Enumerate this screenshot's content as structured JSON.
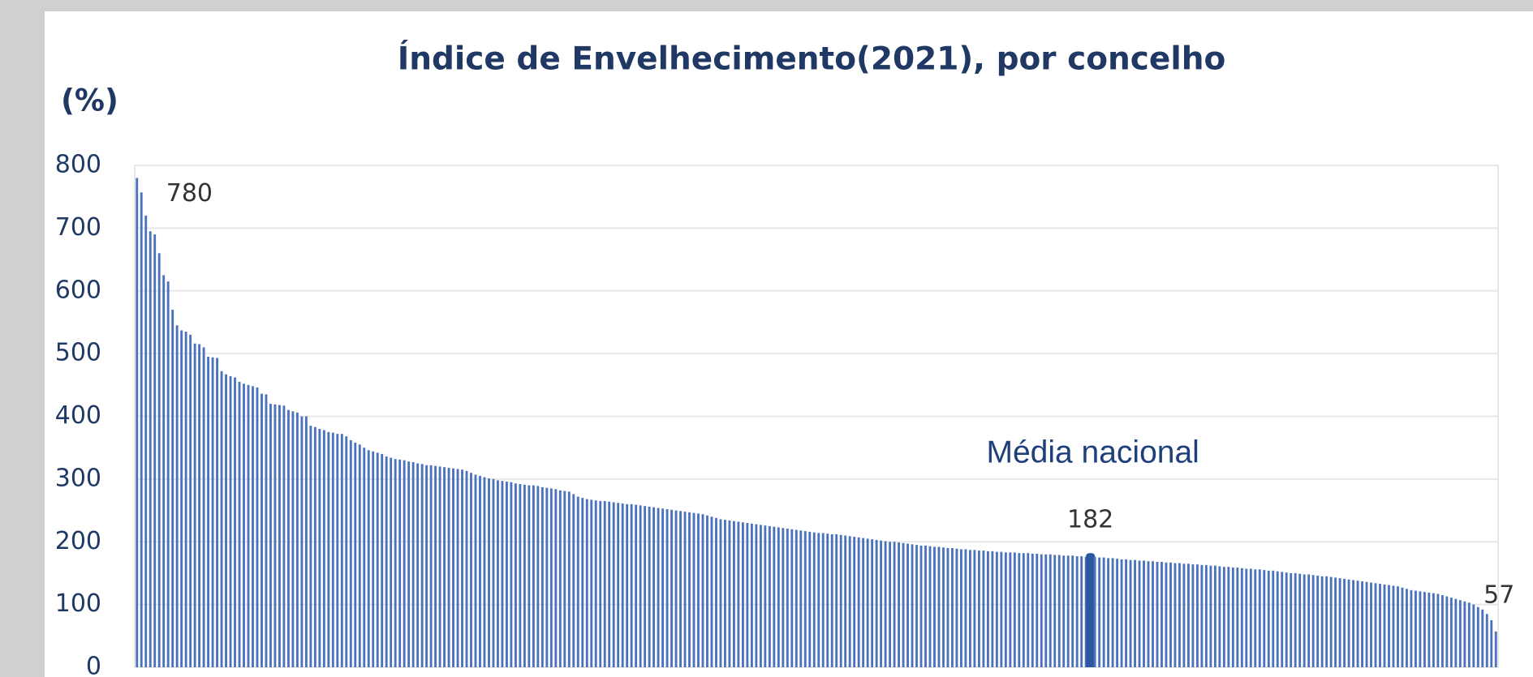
{
  "chart_data": {
    "type": "bar",
    "title": "Índice de Envelhecimento(2021), por concelho",
    "y_label": "(%)",
    "color": "#4a72bd",
    "grid": true,
    "ylim": [
      0,
      800
    ],
    "yticks": [
      0,
      100,
      200,
      300,
      400,
      500,
      600,
      700,
      800
    ],
    "highlight": {
      "index": 214,
      "label": "Média nacional",
      "color": "#2c56a0"
    },
    "labeled_indices": [
      0,
      214,
      305
    ],
    "values": [
      780,
      757,
      720,
      695,
      690,
      660,
      625,
      615,
      570,
      545,
      537,
      535,
      530,
      516,
      515,
      510,
      495,
      494,
      493,
      472,
      467,
      464,
      462,
      455,
      452,
      450,
      448,
      446,
      436,
      435,
      420,
      419,
      418,
      417,
      410,
      408,
      406,
      400,
      400,
      385,
      383,
      380,
      378,
      375,
      374,
      372,
      372,
      368,
      362,
      358,
      355,
      350,
      346,
      344,
      342,
      340,
      336,
      334,
      332,
      331,
      330,
      328,
      327,
      325,
      324,
      322,
      322,
      321,
      320,
      319,
      318,
      317,
      316,
      315,
      313,
      310,
      307,
      305,
      303,
      301,
      300,
      298,
      297,
      296,
      295,
      293,
      292,
      291,
      290,
      290,
      289,
      287,
      286,
      285,
      284,
      282,
      281,
      280,
      276,
      272,
      270,
      268,
      267,
      266,
      265,
      265,
      264,
      263,
      262,
      261,
      260,
      260,
      259,
      258,
      257,
      256,
      255,
      254,
      253,
      252,
      251,
      250,
      249,
      248,
      247,
      246,
      245,
      244,
      242,
      240,
      238,
      236,
      235,
      234,
      233,
      232,
      231,
      230,
      229,
      228,
      227,
      226,
      225,
      224,
      223,
      222,
      221,
      220,
      219,
      218,
      217,
      216,
      215,
      214,
      214,
      213,
      212,
      212,
      211,
      210,
      209,
      208,
      207,
      206,
      205,
      204,
      203,
      202,
      201,
      200,
      200,
      199,
      198,
      197,
      196,
      195,
      194,
      194,
      193,
      192,
      192,
      191,
      190,
      190,
      189,
      188,
      188,
      187,
      187,
      186,
      186,
      185,
      185,
      184,
      184,
      183,
      183,
      183,
      182,
      182,
      182,
      181,
      181,
      180,
      180,
      180,
      179,
      179,
      178,
      178,
      178,
      177,
      177,
      176,
      182,
      176,
      175,
      175,
      174,
      174,
      173,
      172,
      172,
      171,
      171,
      170,
      170,
      169,
      169,
      168,
      168,
      167,
      167,
      166,
      166,
      165,
      165,
      164,
      164,
      163,
      163,
      162,
      162,
      161,
      160,
      160,
      159,
      159,
      158,
      157,
      157,
      156,
      156,
      155,
      154,
      154,
      153,
      152,
      151,
      150,
      150,
      149,
      148,
      148,
      147,
      146,
      145,
      145,
      144,
      143,
      142,
      141,
      140,
      139,
      138,
      137,
      136,
      135,
      134,
      133,
      132,
      131,
      130,
      129,
      127,
      125,
      123,
      122,
      121,
      120,
      119,
      118,
      117,
      115,
      113,
      111,
      109,
      107,
      105,
      103,
      100,
      96,
      92,
      85,
      75,
      57
    ]
  }
}
